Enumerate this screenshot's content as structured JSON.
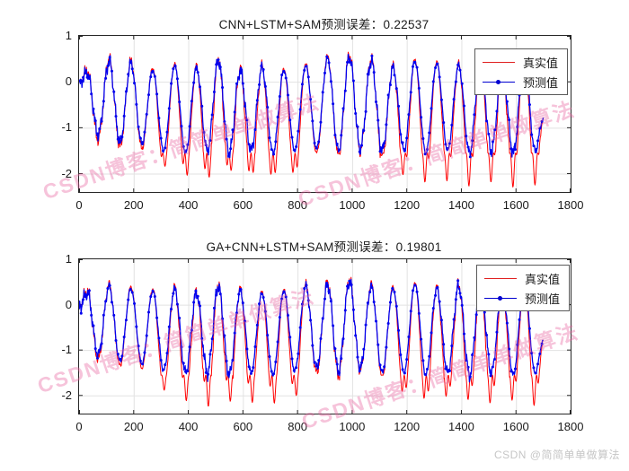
{
  "figure": {
    "watermark_text": "CSDN博客：简简单单做算法",
    "corner_watermark": "CSDN @简简单单做算法",
    "watermark_color": "#e7609e",
    "corner_color": "#c6c6c6",
    "background": "#ffffff"
  },
  "axes_style": {
    "frame_color": "#262626",
    "grid_color": "#e2e2e2",
    "tick_color": "#262626",
    "tick_font_color": "#1a1a1a"
  },
  "chart_data": [
    {
      "type": "line",
      "title": "CNN+LSTM+SAM预测误差：0.22537",
      "prediction_error": 0.22537,
      "xlabel": "",
      "ylabel": "",
      "xlim": [
        0,
        1800
      ],
      "ylim": [
        -2.4,
        1
      ],
      "x_ticks": [
        0,
        200,
        400,
        600,
        800,
        1000,
        1200,
        1400,
        1600,
        1800
      ],
      "y_ticks": [
        1,
        0,
        -1,
        -2
      ],
      "grid": true,
      "legend_position": "upper-right",
      "x_start": 0,
      "x_end": 1700,
      "cycle_period": 80,
      "peak_offset": 30,
      "trough_offset": 70,
      "series": [
        {
          "name": "真实值",
          "color": "#FF0000",
          "line_width": 1,
          "marker": "none",
          "peaks": [
            0.25,
            0.5,
            0.45,
            0.3,
            0.4,
            0.35,
            0.5,
            0.3,
            0.35,
            0.3,
            0.4,
            0.55,
            0.6,
            0.5,
            0.35,
            0.5,
            0.45,
            0.4,
            0.5,
            0.35,
            0.55
          ],
          "troughs": [
            -1.25,
            -1.4,
            -1.45,
            -1.95,
            -2.2,
            -2.3,
            -2.15,
            -2.25,
            -2.3,
            -2.2,
            -1.55,
            -1.6,
            -1.5,
            -1.65,
            -2.1,
            -2.25,
            -2.2,
            -2.3,
            -2.2,
            -2.3,
            -2.25
          ]
        },
        {
          "name": "预测值",
          "color": "#0000EE",
          "line_width": 1.3,
          "marker": "dot",
          "peaks": [
            0.2,
            0.45,
            0.4,
            0.25,
            0.35,
            0.3,
            0.45,
            0.25,
            0.3,
            0.25,
            0.35,
            0.5,
            0.55,
            0.45,
            0.3,
            0.45,
            0.4,
            0.35,
            0.45,
            0.3,
            0.5
          ],
          "troughs": [
            -1.15,
            -1.3,
            -1.35,
            -1.5,
            -1.55,
            -1.5,
            -1.55,
            -1.5,
            -1.55,
            -1.5,
            -1.45,
            -1.5,
            -1.45,
            -1.5,
            -1.5,
            -1.55,
            -1.5,
            -1.55,
            -1.5,
            -1.55,
            -1.5
          ]
        }
      ]
    },
    {
      "type": "line",
      "title": "GA+CNN+LSTM+SAM预测误差：0.19801",
      "prediction_error": 0.19801,
      "xlabel": "",
      "ylabel": "",
      "xlim": [
        0,
        1800
      ],
      "ylim": [
        -2.4,
        1
      ],
      "x_ticks": [
        0,
        200,
        400,
        600,
        800,
        1000,
        1200,
        1400,
        1600,
        1800
      ],
      "y_ticks": [
        1,
        0,
        -1,
        -2
      ],
      "grid": true,
      "legend_position": "upper-right",
      "x_start": 0,
      "x_end": 1700,
      "cycle_period": 80,
      "peak_offset": 30,
      "trough_offset": 70,
      "series": [
        {
          "name": "真实值",
          "color": "#FF0000",
          "line_width": 1,
          "marker": "none",
          "peaks": [
            0.3,
            0.45,
            0.4,
            0.35,
            0.4,
            0.3,
            0.45,
            0.35,
            0.3,
            0.35,
            0.45,
            0.5,
            0.55,
            0.45,
            0.4,
            0.5,
            0.4,
            0.45,
            0.5,
            0.4,
            0.5
          ],
          "troughs": [
            -1.2,
            -1.35,
            -1.4,
            -1.9,
            -2.15,
            -2.3,
            -2.2,
            -2.25,
            -2.3,
            -2.15,
            -1.5,
            -1.55,
            -1.45,
            -1.6,
            -2.15,
            -2.3,
            -2.2,
            -2.25,
            -2.3,
            -2.2,
            -2.3
          ]
        },
        {
          "name": "预测值",
          "color": "#0000EE",
          "line_width": 1.3,
          "marker": "dot",
          "peaks": [
            0.25,
            0.4,
            0.35,
            0.3,
            0.35,
            0.25,
            0.4,
            0.3,
            0.25,
            0.3,
            0.4,
            0.45,
            0.5,
            0.4,
            0.35,
            0.45,
            0.35,
            0.4,
            0.45,
            0.35,
            0.45
          ],
          "troughs": [
            -1.1,
            -1.25,
            -1.3,
            -1.45,
            -1.5,
            -1.5,
            -1.55,
            -1.5,
            -1.55,
            -1.45,
            -1.4,
            -1.45,
            -1.4,
            -1.5,
            -1.5,
            -1.55,
            -1.5,
            -1.55,
            -1.5,
            -1.55,
            -1.5
          ]
        }
      ]
    }
  ]
}
